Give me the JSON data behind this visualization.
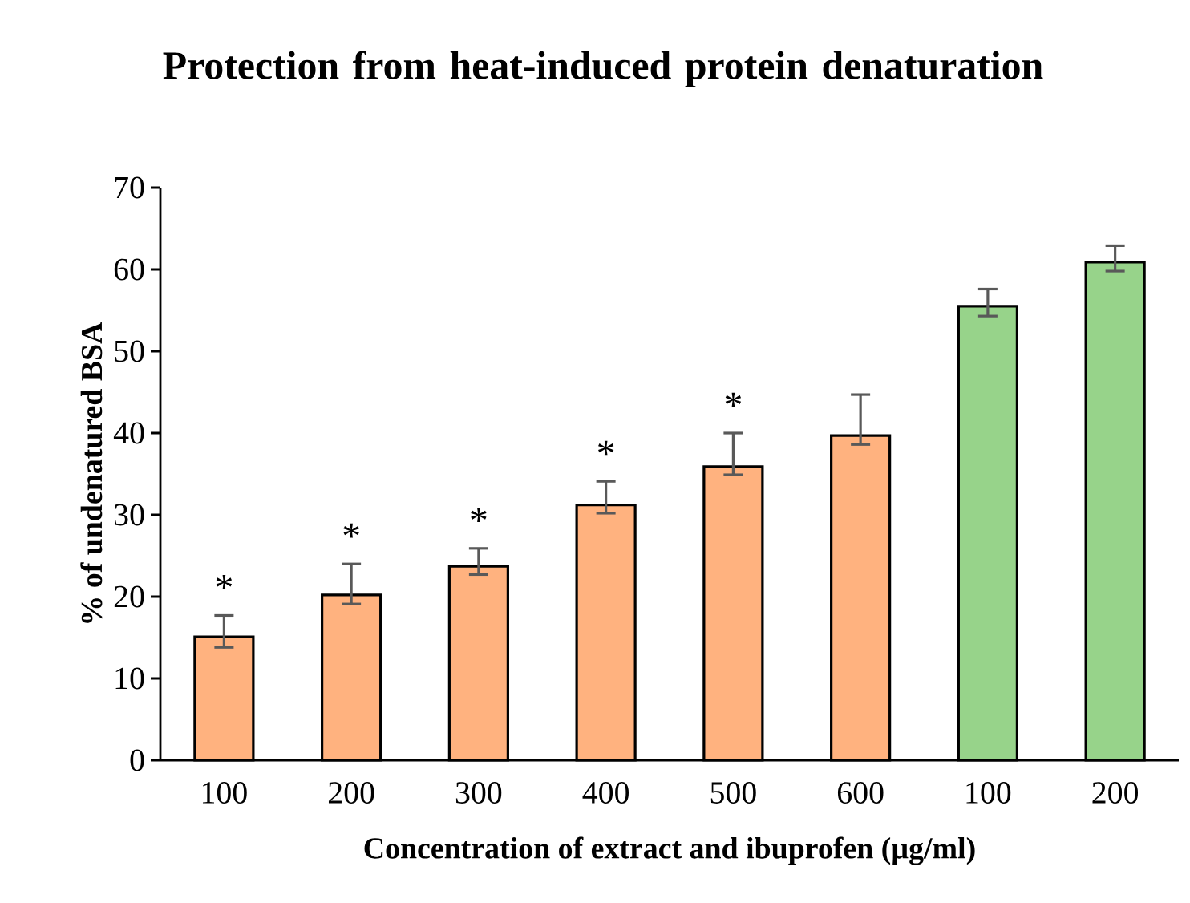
{
  "chart_data": {
    "type": "bar",
    "title": "Protection from heat-induced protein denaturation",
    "xlabel": "Concentration of extract and ibuprofen (µg/ml)",
    "ylabel": "% of undenatured BSA",
    "categories": [
      "100",
      "200",
      "300",
      "400",
      "500",
      "600",
      "100",
      "200"
    ],
    "values": [
      15.1,
      20.2,
      23.7,
      31.2,
      35.9,
      39.7,
      55.5,
      60.9
    ],
    "errors": [
      [
        13.8,
        17.7
      ],
      [
        19.1,
        24.0
      ],
      [
        22.7,
        25.9
      ],
      [
        30.2,
        34.1
      ],
      [
        34.9,
        40.0
      ],
      [
        38.6,
        44.7
      ],
      [
        54.3,
        57.6
      ],
      [
        59.8,
        62.9
      ]
    ],
    "colors": [
      "#ffb27f",
      "#ffb27f",
      "#ffb27f",
      "#ffb27f",
      "#ffb27f",
      "#ffb27f",
      "#97d38a",
      "#97d38a"
    ],
    "ylim": [
      0,
      70
    ],
    "yticks": [
      0,
      10,
      20,
      30,
      40,
      50,
      60,
      70
    ],
    "grid": false,
    "annotations": [
      "*",
      "*",
      "*",
      "*",
      "*"
    ]
  }
}
